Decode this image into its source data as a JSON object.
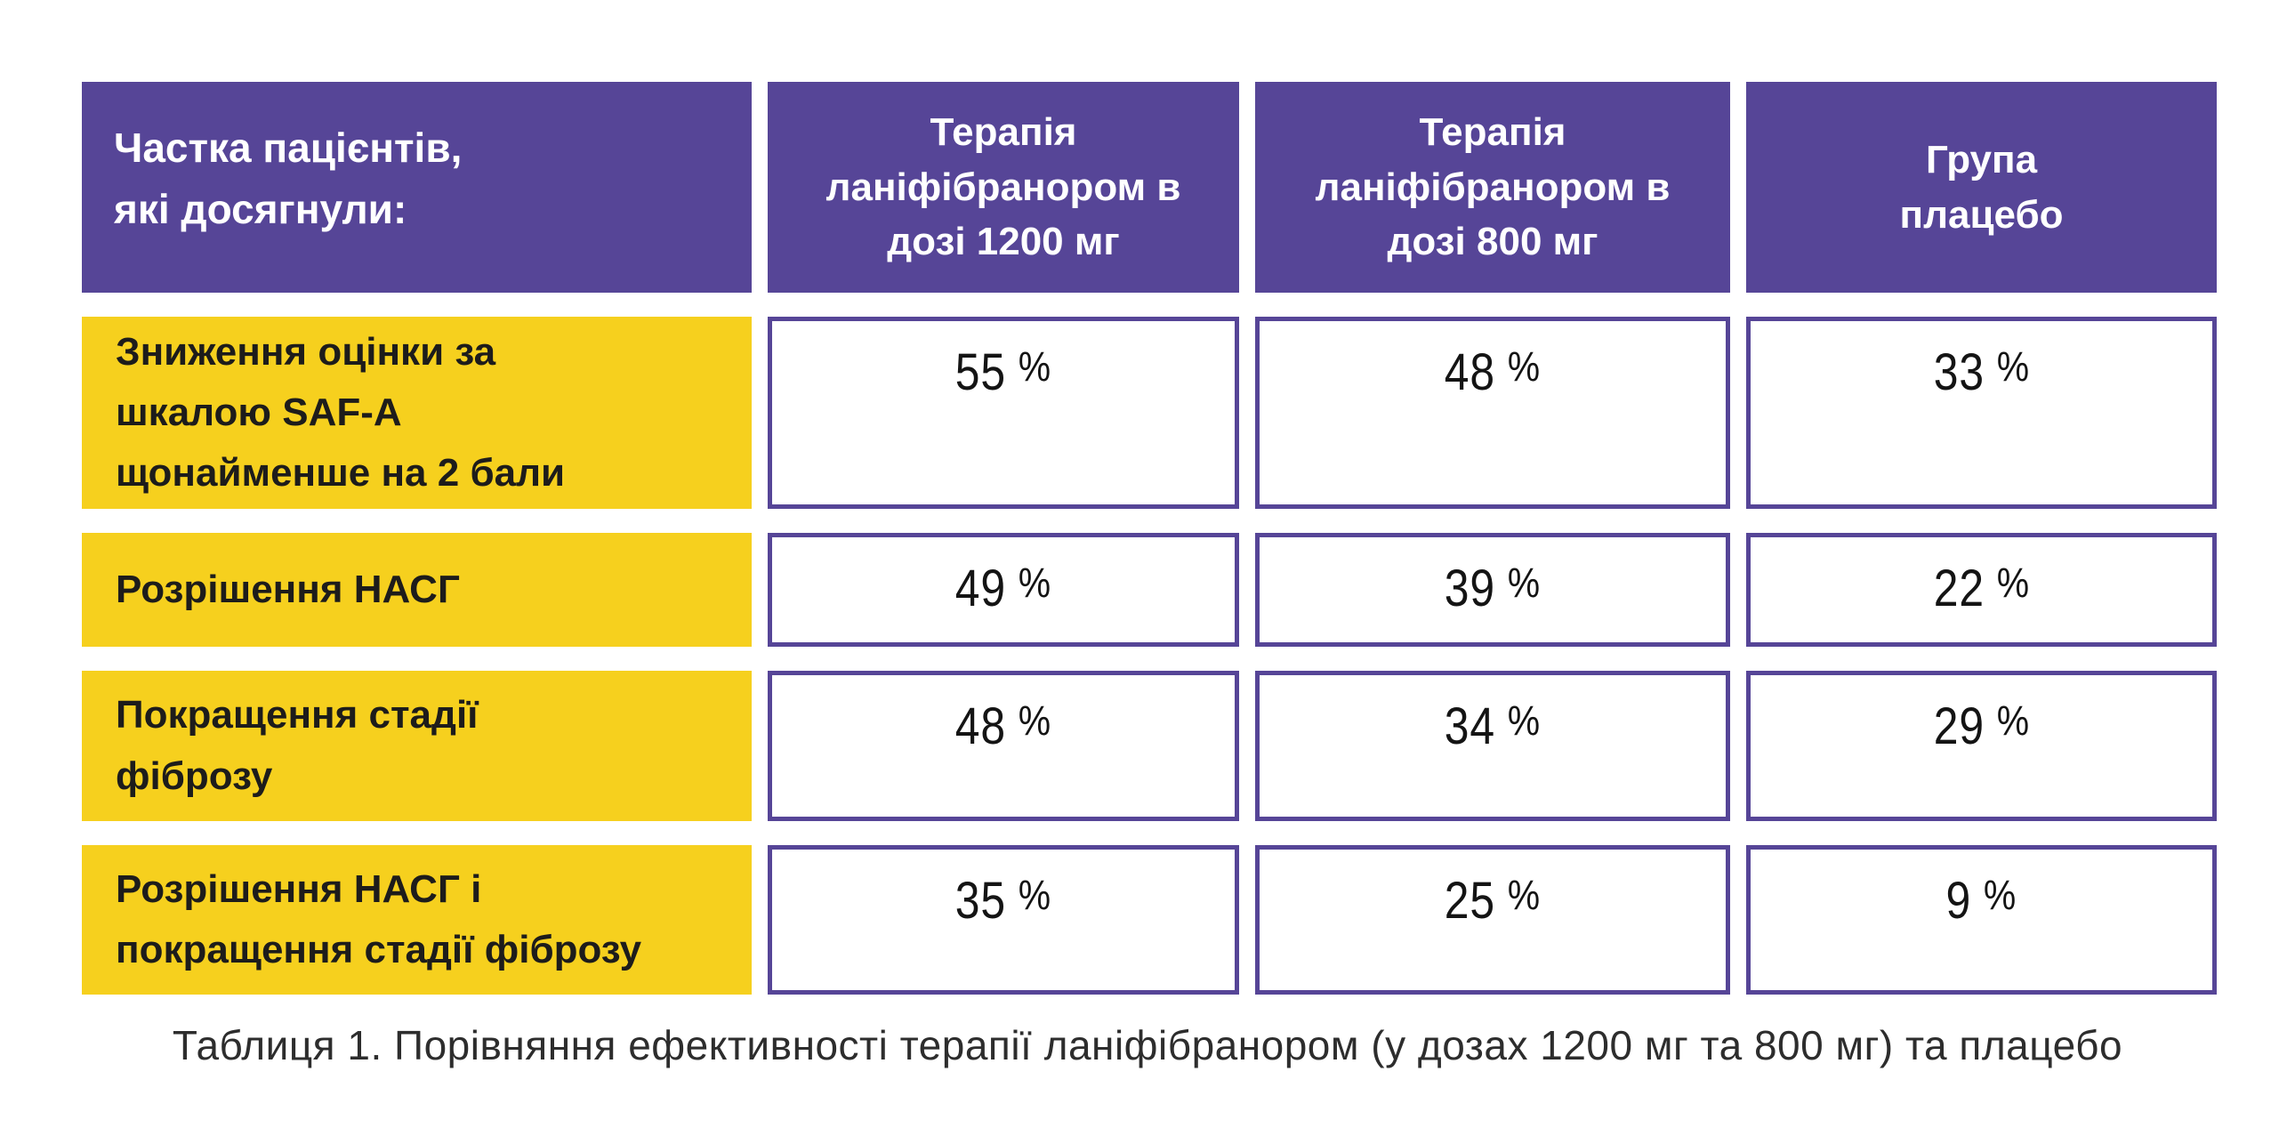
{
  "table": {
    "percent_sign": "%",
    "header_col1": "Частка пацієнтів,\nякі досягнули:",
    "header_col2": "Терапія\nланіфібранором в\nдозі 1200 мг",
    "header_col3": "Терапія\nланіфібранором в\nдозі 800 мг",
    "header_col4": "Група\nплацебо",
    "rows": [
      {
        "label": "Зниження оцінки за\nшкалою SAF-A\nщонайменше на 2 бали",
        "values": [
          "55",
          "48",
          "33"
        ]
      },
      {
        "label": "Розрішення НАСГ",
        "values": [
          "49",
          "39",
          "22"
        ]
      },
      {
        "label": "Покращення стадії\nфіброзу",
        "values": [
          "48",
          "34",
          "29"
        ]
      },
      {
        "label": "Розрішення НАСГ і\nпокращення стадії фіброзу",
        "values": [
          "35",
          "25",
          "9"
        ]
      }
    ]
  },
  "caption": {
    "text": "Таблиця 1. Порівняння ефективності терапії ланіфібранором (у дозах 1200 мг та 800 мг) та плацебо"
  },
  "colors": {
    "header_purple": "#564597",
    "cell_border_purple": "#564597",
    "label_yellow": "#f6d01e",
    "label_text": "#1d1c1b",
    "value_text": "#141414"
  },
  "chart_data": {
    "type": "table",
    "title": "Таблиця 1. Порівняння ефективності терапії ланіфібранором (у дозах 1200 мг та 800 мг) та плацебо",
    "columns": [
      "Частка пацієнтів, які досягнули:",
      "Терапія ланіфібранором в дозі 1200 мг",
      "Терапія ланіфібранором в дозі 800 мг",
      "Група плацебо"
    ],
    "rows": [
      [
        "Зниження оцінки за шкалою SAF-A щонайменше на 2 бали",
        "55 %",
        "48 %",
        "33 %"
      ],
      [
        "Розрішення НАСГ",
        "49 %",
        "39 %",
        "22 %"
      ],
      [
        "Покращення стадії фіброзу",
        "48 %",
        "34 %",
        "29 %"
      ],
      [
        "Розрішення НАСГ і покращення стадії фіброзу",
        "35 %",
        "25 %",
        "9 %"
      ]
    ],
    "values_numeric": [
      [
        55,
        48,
        33
      ],
      [
        49,
        39,
        22
      ],
      [
        48,
        34,
        29
      ],
      [
        35,
        25,
        9
      ]
    ],
    "unit": "%"
  }
}
